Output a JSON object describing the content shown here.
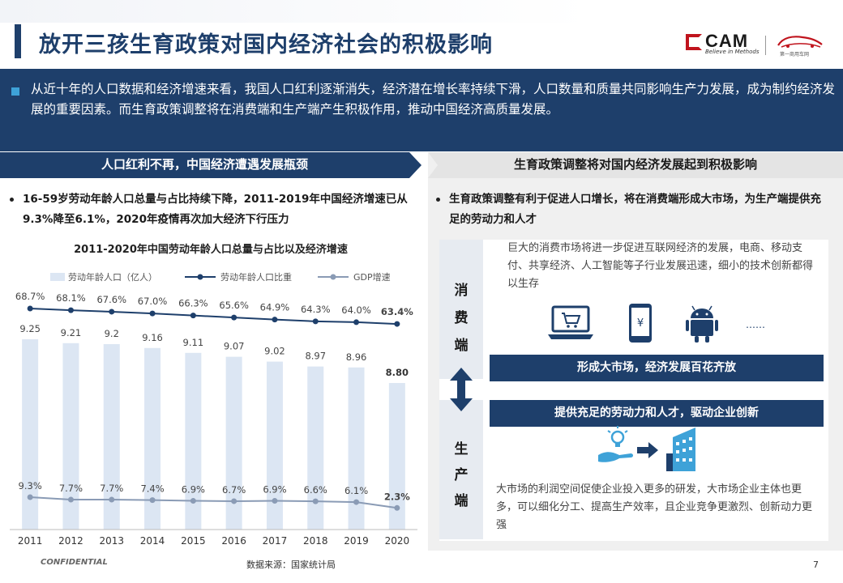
{
  "page": {
    "title": "放开三孩生育政策对国内经济社会的积极影响",
    "summary": "从近十年的人口数据和经济增速来看，我国人口红利逐渐消失，经济潜在增长率持续下滑，人口数量和质量共同影响生产力发展，成为制约经济发展的重要因素。而生育政策调整将在消费端和生产端产生积极作用，推动中国经济高质量发展。",
    "confidential": "CONFIDENTIAL",
    "source": "数据来源：国家统计局",
    "page_number": "7"
  },
  "logos": {
    "cam_text": "CAM",
    "cam_tagline": "Believe in Methods",
    "car_text": "第一商用车网"
  },
  "left": {
    "header": "人口红利不再，中国经济遭遇发展瓶颈",
    "bullet": "16-59岁劳动年龄人口总量与占比持续下降，2011-2019年中国经济增速已从9.3%降至6.1%，2020年疫情再次加大经济下行压力",
    "chart_title": "2011-2020年中国劳动年龄人口总量与占比以及经济增速"
  },
  "right": {
    "header": "生育政策调整将对国内经济发展起到积极影响",
    "bullet": "生育政策调整有利于促进人口增长，将在消费端形成大市场，为生产端提供充足的劳动力和人才",
    "consume_chars": [
      "消",
      "费",
      "端"
    ],
    "produce_chars": [
      "生",
      "产",
      "端"
    ],
    "consume_desc": "巨大的消费市场将进一步促进互联网经济的发展，电商、移动支付、共享经济、人工智能等子行业发展迅速，细小的技术创新都得以生存",
    "box_market": "形成大市场，经济发展百花齐放",
    "box_talent": "提供充足的劳动力和人才，驱动企业创新",
    "produce_desc": "大市场的利润空间促使企业投入更多的研发，大市场企业主体也更多，可以细化分工、提高生产效率，且企业竞争更激烈、创新动力更强",
    "icons": [
      "laptop-cart-icon",
      "phone-yuan-icon",
      "android-icon",
      "ellipsis-icon",
      "hand-bulb-icon",
      "right-arrow-icon",
      "building-icon",
      "up-down-arrow-icon"
    ],
    "ellipsis": "……"
  },
  "chart_data": {
    "type": "bar",
    "title": "2011-2020年中国劳动年龄人口总量与占比以及经济增速",
    "categories": [
      "2011",
      "2012",
      "2013",
      "2014",
      "2015",
      "2016",
      "2017",
      "2018",
      "2019",
      "2020"
    ],
    "series": [
      {
        "name": "劳动年龄人口（亿人）",
        "kind": "bar",
        "values": [
          9.25,
          9.21,
          9.2,
          9.16,
          9.11,
          9.07,
          9.02,
          8.97,
          8.96,
          8.8
        ],
        "labels": [
          "9.25",
          "9.21",
          "9.2",
          "9.16",
          "9.11",
          "9.07",
          "9.02",
          "8.97",
          "8.96",
          "8.80"
        ]
      },
      {
        "name": "劳动年龄人口比重",
        "kind": "line",
        "values": [
          68.7,
          68.1,
          67.6,
          67.0,
          66.3,
          65.6,
          64.9,
          64.3,
          64.0,
          63.4
        ],
        "labels": [
          "68.7%",
          "68.1%",
          "67.6%",
          "67.0%",
          "66.3%",
          "65.6%",
          "64.9%",
          "64.3%",
          "64.0%",
          "63.4%"
        ]
      },
      {
        "name": "GDP增速",
        "kind": "line",
        "values": [
          9.3,
          7.7,
          7.7,
          7.4,
          6.9,
          6.7,
          6.9,
          6.6,
          6.1,
          2.3
        ],
        "labels": [
          "9.3%",
          "7.7%",
          "7.7%",
          "7.4%",
          "6.9%",
          "6.7%",
          "6.9%",
          "6.6%",
          "6.1%",
          "2.3%"
        ]
      }
    ],
    "colors": {
      "bar": "#dce6f3",
      "share_line": "#1e3f6b",
      "gdp_line": "#8a9bb5"
    },
    "legend_position": "top",
    "grid": false
  }
}
